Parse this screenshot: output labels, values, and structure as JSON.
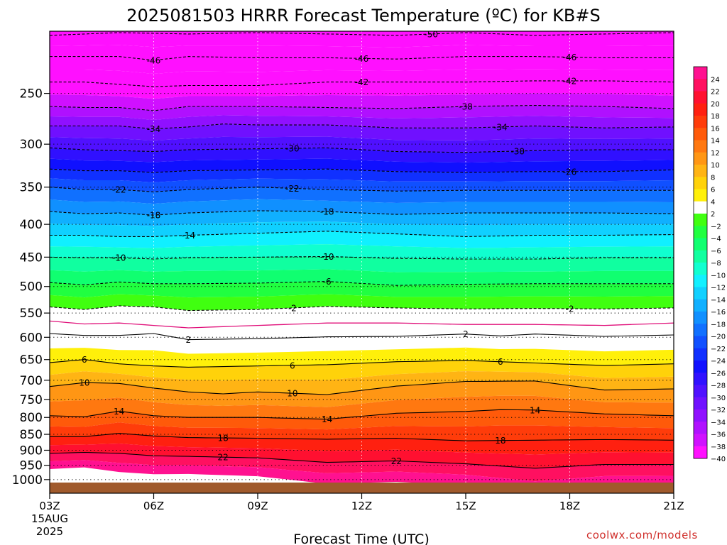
{
  "chart_data": {
    "type": "heatmap",
    "title": "2025081503 HRRR Forecast Temperature (ºC) for KB#S",
    "xlabel": "Forecast Time (UTC)",
    "ylabel": "",
    "x_ticks": [
      "03Z",
      "06Z",
      "09Z",
      "12Z",
      "15Z",
      "18Z",
      "21Z"
    ],
    "x_tick_hours": [
      3,
      6,
      9,
      12,
      15,
      18,
      21
    ],
    "date_label": [
      "15AUG",
      "2025"
    ],
    "xlim": [
      3,
      21
    ],
    "y_scale": "log-pressure (inverted)",
    "ylim_hPa": [
      1050,
      200
    ],
    "y_ticks": [
      250,
      300,
      350,
      400,
      450,
      500,
      550,
      600,
      650,
      700,
      750,
      800,
      850,
      900,
      950,
      1000
    ],
    "ground_below_hPa": 1013,
    "colorbar": {
      "labels": [
        "24",
        "22",
        "20",
        "18",
        "16",
        "14",
        "12",
        "10",
        "8",
        "6",
        "4",
        "2",
        "−2",
        "−4",
        "−6",
        "−8",
        "−10",
        "−12",
        "−14",
        "−16",
        "−18",
        "−20",
        "−22",
        "−24",
        "−26",
        "−28",
        "−30",
        "−32",
        "−34",
        "−36",
        "−38",
        "−40"
      ],
      "colors": [
        "#ff1190",
        "#ff1060",
        "#ff1030",
        "#ff2010",
        "#ff3c0a",
        "#ff5a0a",
        "#ff7810",
        "#ff9614",
        "#ffb414",
        "#ffd20a",
        "#fff00a",
        "#ffffff",
        "#40ff10",
        "#20ff40",
        "#10ff70",
        "#10ffa0",
        "#10ffd0",
        "#10f0ff",
        "#10d0ff",
        "#10b0ff",
        "#1090ff",
        "#1070ff",
        "#1050ff",
        "#1030ff",
        "#1010ff",
        "#3010ff",
        "#5010ff",
        "#7010ff",
        "#9010ff",
        "#b010ff",
        "#d010ff",
        "#ff10ff"
      ]
    },
    "contour_labels_solid": [
      "2",
      "6",
      "10",
      "14",
      "18",
      "22"
    ],
    "contour_labels_dashed": [
      "-2",
      "-6",
      "-10",
      "-14",
      "-18",
      "-22",
      "-26",
      "-30",
      "-34",
      "-38",
      "-42",
      "-46",
      "-50"
    ],
    "series": [
      {
        "name": "-50",
        "style": "dashed",
        "hour": [
          3,
          5,
          7,
          9,
          11,
          13,
          15,
          17,
          19,
          21
        ],
        "hPa": [
          203,
          201,
          202,
          201,
          202,
          203,
          201,
          203,
          202,
          201
        ]
      },
      {
        "name": "-46",
        "style": "dashed",
        "hour": [
          3,
          4,
          5,
          6,
          7,
          9,
          11,
          13,
          15,
          17,
          19,
          21
        ],
        "hPa": [
          219,
          219,
          219,
          222,
          219,
          220,
          220,
          221,
          219,
          219,
          220,
          220
        ]
      },
      {
        "name": "-42",
        "style": "dashed",
        "hour": [
          3,
          4,
          5,
          6,
          7,
          9,
          11,
          13,
          15,
          17,
          19,
          21
        ],
        "hPa": [
          240,
          240,
          242,
          244,
          243,
          243,
          240,
          240,
          240,
          239,
          239,
          240
        ]
      },
      {
        "name": "-38",
        "style": "dashed",
        "hour": [
          3,
          4,
          5,
          6,
          7,
          9,
          11,
          13,
          15,
          17,
          19,
          21
        ],
        "hPa": [
          262,
          263,
          263,
          266,
          262,
          262,
          263,
          264,
          262,
          261,
          262,
          264
        ]
      },
      {
        "name": "-34",
        "style": "dashed",
        "hour": [
          3,
          4,
          5,
          6,
          7,
          8,
          9,
          11,
          13,
          15,
          17,
          19,
          21
        ],
        "hPa": [
          281,
          281,
          281,
          284,
          282,
          279,
          280,
          280,
          283,
          283,
          281,
          283,
          282
        ]
      },
      {
        "name": "-30",
        "style": "dashed",
        "hour": [
          3,
          4,
          5,
          6,
          7,
          9,
          11,
          13,
          15,
          17,
          19,
          21
        ],
        "hPa": [
          304,
          306,
          307,
          308,
          306,
          305,
          304,
          308,
          309,
          307,
          306,
          306
        ]
      },
      {
        "name": "-26",
        "style": "dashed",
        "hour": [
          3,
          4,
          5,
          6,
          7,
          9,
          11,
          13,
          15,
          17,
          19,
          21
        ],
        "hPa": [
          328,
          330,
          330,
          332,
          330,
          329,
          328,
          331,
          332,
          331,
          331,
          329
        ]
      },
      {
        "name": "-22",
        "style": "dashed",
        "hour": [
          3,
          4,
          5,
          6,
          7,
          9,
          11,
          13,
          15,
          17,
          19,
          21
        ],
        "hPa": [
          350,
          353,
          353,
          356,
          353,
          350,
          353,
          355,
          354,
          354,
          354,
          354
        ]
      },
      {
        "name": "-18",
        "style": "dashed",
        "hour": [
          3,
          4,
          5,
          6,
          7,
          9,
          11,
          13,
          15,
          17,
          19,
          21
        ],
        "hPa": [
          382,
          385,
          384,
          387,
          384,
          381,
          382,
          386,
          384,
          384,
          384,
          385
        ]
      },
      {
        "name": "-14",
        "style": "dashed",
        "hour": [
          3,
          4,
          5,
          6,
          7,
          9,
          11,
          13,
          15,
          17,
          19,
          21
        ],
        "hPa": [
          416,
          416,
          418,
          418,
          416,
          413,
          410,
          414,
          418,
          416,
          416,
          415
        ]
      },
      {
        "name": "-10",
        "style": "dashed",
        "hour": [
          3,
          4,
          5,
          6,
          7,
          9,
          11,
          13,
          15,
          17,
          19,
          21
        ],
        "hPa": [
          450,
          451,
          451,
          453,
          451,
          450,
          449,
          452,
          453,
          453,
          451,
          451
        ]
      },
      {
        "name": "-6",
        "style": "dashed",
        "hour": [
          3,
          4,
          5,
          6,
          7,
          9,
          11,
          13,
          15,
          17,
          19,
          21
        ],
        "hPa": [
          493,
          497,
          492,
          495,
          495,
          494,
          491,
          498,
          496,
          495,
          495,
          495
        ]
      },
      {
        "name": "-2",
        "style": "dashed",
        "hour": [
          3,
          4,
          5,
          6,
          7,
          9,
          11,
          13,
          15,
          17,
          19,
          21
        ],
        "hPa": [
          538,
          543,
          536,
          538,
          545,
          543,
          537,
          540,
          542,
          541,
          542,
          540
        ]
      },
      {
        "name": "0",
        "style": "solid-magenta",
        "hour": [
          3,
          4,
          5,
          6,
          7,
          9,
          11,
          13,
          15,
          17,
          19,
          21
        ],
        "hPa": [
          566,
          572,
          570,
          575,
          580,
          575,
          570,
          570,
          573,
          573,
          575,
          570
        ]
      },
      {
        "name": "2",
        "style": "solid",
        "hour": [
          3,
          4,
          5,
          6,
          7,
          9,
          11,
          13,
          15,
          16,
          17,
          19,
          21
        ],
        "hPa": [
          592,
          596,
          596,
          592,
          605,
          603,
          599,
          598,
          593,
          597,
          593,
          598,
          595
        ]
      },
      {
        "name": "6",
        "style": "solid",
        "hour": [
          3,
          4,
          5,
          6,
          7,
          9,
          11,
          13,
          15,
          17,
          19,
          21
        ],
        "hPa": [
          657,
          650,
          660,
          665,
          668,
          665,
          662,
          655,
          652,
          658,
          664,
          660
        ]
      },
      {
        "name": "10",
        "style": "solid",
        "hour": [
          3,
          4,
          5,
          6,
          7,
          8,
          9,
          11,
          13,
          15,
          17,
          19,
          21
        ],
        "hPa": [
          716,
          706,
          708,
          720,
          730,
          735,
          730,
          737,
          715,
          703,
          702,
          725,
          722
        ]
      },
      {
        "name": "14",
        "style": "solid",
        "hour": [
          3,
          4,
          5,
          6,
          7,
          9,
          11,
          13,
          15,
          16,
          17,
          19,
          21
        ],
        "hPa": [
          795,
          798,
          782,
          795,
          800,
          800,
          805,
          788,
          783,
          778,
          779,
          790,
          795
        ]
      },
      {
        "name": "18",
        "style": "solid",
        "hour": [
          3,
          4,
          5,
          6,
          7,
          9,
          11,
          13,
          15,
          17,
          19,
          21
        ],
        "hPa": [
          857,
          857,
          847,
          855,
          860,
          862,
          865,
          862,
          870,
          868,
          866,
          868
        ]
      },
      {
        "name": "22",
        "style": "solid",
        "hour": [
          3,
          4,
          5,
          6,
          7,
          9,
          11,
          13,
          15,
          17,
          19,
          21
        ],
        "hPa": [
          910,
          907,
          910,
          918,
          920,
          925,
          940,
          935,
          945,
          960,
          947,
          947
        ]
      }
    ]
  },
  "credit": "coolwx.com/models"
}
